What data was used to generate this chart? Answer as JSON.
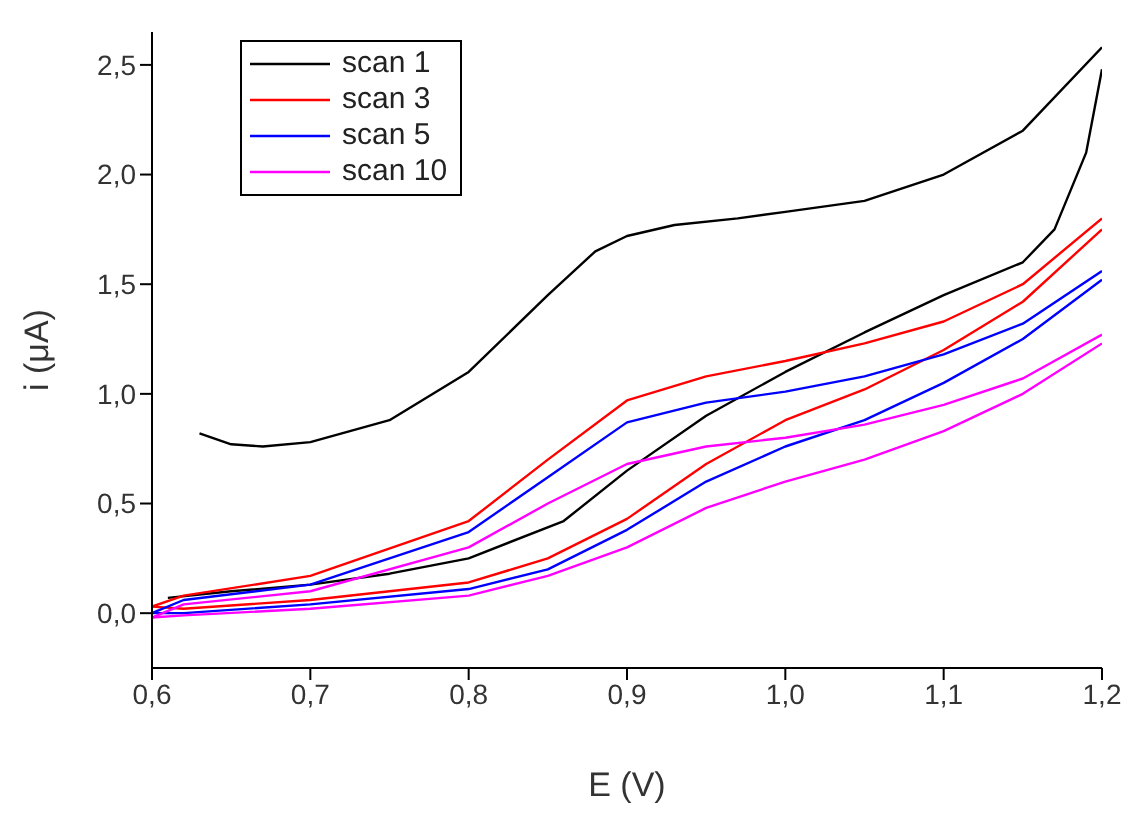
{
  "chart_data": {
    "type": "line",
    "xlabel": "E (V)",
    "ylabel": "i (μA)",
    "xlim": [
      0.6,
      1.2
    ],
    "xticks": [
      {
        "value": 0.6,
        "label": "0,6"
      },
      {
        "value": 0.7,
        "label": "0,7"
      },
      {
        "value": 0.8,
        "label": "0,8"
      },
      {
        "value": 0.9,
        "label": "0,9"
      },
      {
        "value": 1.0,
        "label": "1,0"
      },
      {
        "value": 1.1,
        "label": "1,1"
      },
      {
        "value": 1.2,
        "label": "1,2"
      }
    ],
    "ylim": [
      -0.25,
      2.65
    ],
    "yticks": [
      {
        "value": 0,
        "label": "0,0"
      },
      {
        "value": 0.5,
        "label": "0,5"
      },
      {
        "value": 1,
        "label": "1,0"
      },
      {
        "value": 1.5,
        "label": "1,5"
      },
      {
        "value": 2,
        "label": "2,0"
      },
      {
        "value": 2.5,
        "label": "2,5"
      }
    ],
    "grid": false,
    "legend": "top left",
    "marker": "none",
    "line_style": "solid",
    "series": [
      {
        "name": "scan 1",
        "color": "#000000",
        "x": [
          0.63,
          0.65,
          0.67,
          0.7,
          0.75,
          0.8,
          0.85,
          0.88,
          0.9,
          0.93,
          0.97,
          1.0,
          1.05,
          1.1,
          1.15,
          1.2
        ],
        "values": [
          0.82,
          0.77,
          0.76,
          0.78,
          0.88,
          1.1,
          1.45,
          1.65,
          1.72,
          1.77,
          1.8,
          1.83,
          1.88,
          2.0,
          2.2,
          2.58
        ]
      },
      {
        "color": "#000000",
        "x": [
          1.2,
          1.19,
          1.17,
          1.15,
          1.1,
          1.05,
          1.0,
          0.95,
          0.9,
          0.86,
          0.8,
          0.75,
          0.7,
          0.65,
          0.61
        ],
        "values": [
          2.48,
          2.1,
          1.75,
          1.6,
          1.45,
          1.28,
          1.1,
          0.9,
          0.65,
          0.42,
          0.25,
          0.18,
          0.13,
          0.1,
          0.07
        ]
      },
      {
        "name": "scan 3",
        "color": "#ff0000",
        "x": [
          0.6,
          0.62,
          0.7,
          0.8,
          0.85,
          0.9,
          0.95,
          1.0,
          1.05,
          1.1,
          1.15,
          1.2
        ],
        "values": [
          0.03,
          0.08,
          0.17,
          0.42,
          0.7,
          0.97,
          1.08,
          1.15,
          1.23,
          1.33,
          1.5,
          1.8
        ]
      },
      {
        "color": "#ff0000",
        "x": [
          1.2,
          1.15,
          1.1,
          1.05,
          1.0,
          0.95,
          0.9,
          0.85,
          0.8,
          0.7,
          0.62,
          0.6
        ],
        "values": [
          1.75,
          1.42,
          1.2,
          1.02,
          0.88,
          0.68,
          0.43,
          0.25,
          0.14,
          0.06,
          0.02,
          0.03
        ]
      },
      {
        "name": "scan 5",
        "color": "#0000ff",
        "x": [
          0.6,
          0.62,
          0.7,
          0.8,
          0.85,
          0.9,
          0.95,
          1.0,
          1.05,
          1.1,
          1.15,
          1.2
        ],
        "values": [
          0.0,
          0.06,
          0.13,
          0.37,
          0.62,
          0.87,
          0.96,
          1.01,
          1.08,
          1.18,
          1.32,
          1.56
        ]
      },
      {
        "color": "#0000ff",
        "x": [
          1.2,
          1.15,
          1.1,
          1.05,
          1.0,
          0.95,
          0.9,
          0.85,
          0.8,
          0.7,
          0.62,
          0.6
        ],
        "values": [
          1.52,
          1.25,
          1.05,
          0.88,
          0.76,
          0.6,
          0.38,
          0.2,
          0.11,
          0.04,
          0.0,
          0.0
        ]
      },
      {
        "name": "scan 10",
        "color": "#ff00ff",
        "x": [
          0.6,
          0.62,
          0.7,
          0.8,
          0.85,
          0.9,
          0.95,
          1.0,
          1.05,
          1.1,
          1.15,
          1.2
        ],
        "values": [
          -0.02,
          0.04,
          0.1,
          0.3,
          0.5,
          0.68,
          0.76,
          0.8,
          0.86,
          0.95,
          1.07,
          1.27
        ]
      },
      {
        "color": "#ff00ff",
        "x": [
          1.2,
          1.15,
          1.1,
          1.05,
          1.0,
          0.95,
          0.9,
          0.85,
          0.8,
          0.7,
          0.62,
          0.6
        ],
        "values": [
          1.23,
          1.0,
          0.83,
          0.7,
          0.6,
          0.48,
          0.3,
          0.17,
          0.08,
          0.02,
          -0.01,
          -0.02
        ]
      }
    ]
  }
}
